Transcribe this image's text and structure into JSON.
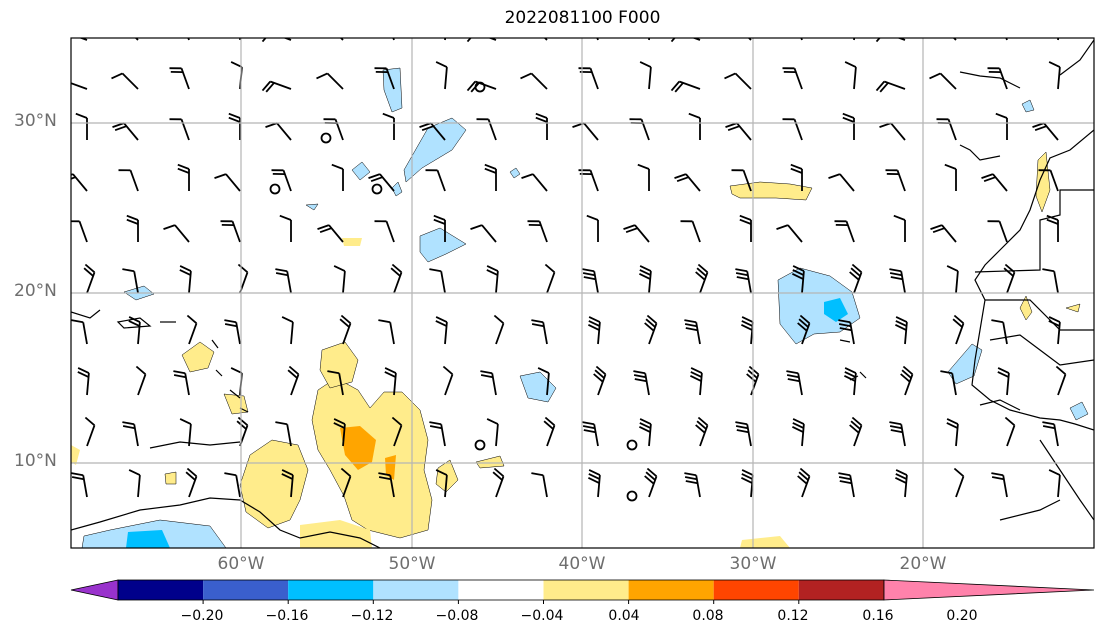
{
  "title": "2022081100 F000",
  "map": {
    "lat_ticks": [
      {
        "label": "30°N",
        "value": 30
      },
      {
        "label": "20°N",
        "value": 20
      },
      {
        "label": "10°N",
        "value": 10
      }
    ],
    "lon_ticks": [
      {
        "label": "60°W",
        "value": -60
      },
      {
        "label": "50°W",
        "value": -50
      },
      {
        "label": "40°W",
        "value": -40
      },
      {
        "label": "30°W",
        "value": -30
      },
      {
        "label": "20°W",
        "value": -20
      }
    ],
    "extent": {
      "lon_min": -70,
      "lon_max": -10,
      "lat_min": 5,
      "lat_max": 35
    },
    "gridlines": true
  },
  "colorbar": {
    "labels": [
      "−0.20",
      "−0.16",
      "−0.12",
      "−0.08",
      "−0.04",
      "0.04",
      "0.08",
      "0.12",
      "0.16",
      "0.20"
    ],
    "colors": [
      "#9932cc",
      "#00008b",
      "#3a5fcd",
      "#00bfff",
      "#b0e2ff",
      "#ffffff",
      "#ffec8b",
      "#ffa500",
      "#ff4500",
      "#b22222",
      "#ff82ab"
    ],
    "extend": "both"
  }
}
